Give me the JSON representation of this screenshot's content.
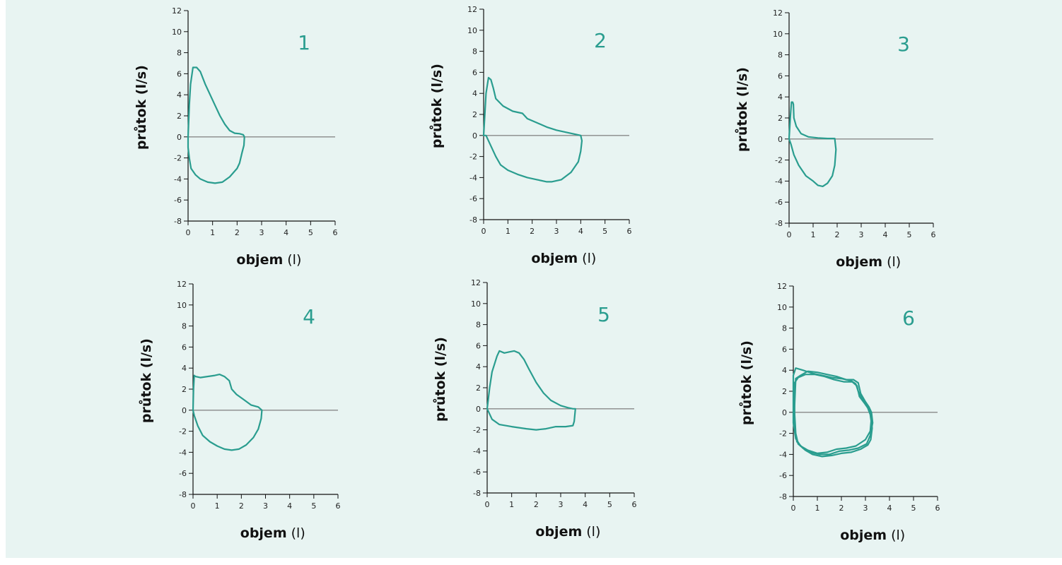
{
  "colors": {
    "curve": "#2a9d8f",
    "number": "#2a9d8f",
    "axis": "#111111",
    "zero_line": "#888888",
    "background": "#e8f4f2"
  },
  "chart_data": [
    {
      "type": "line",
      "panel_label": "1",
      "xlabel": "objem",
      "xunit": "(l)",
      "ylabel": "průtok (l/s)",
      "xlim": [
        0,
        6
      ],
      "ylim": [
        -8,
        12
      ],
      "x_ticks": [
        "0",
        "1",
        "2",
        "3",
        "4",
        "5",
        "6"
      ],
      "y_ticks": [
        "12",
        "10",
        "8",
        "6",
        "4",
        "2",
        "0",
        "-2",
        "-4",
        "-6",
        "-8"
      ],
      "series": [
        {
          "x": [
            0,
            0.05,
            0.1,
            0.2,
            0.35,
            0.5,
            0.7,
            0.9,
            1.1,
            1.3,
            1.5,
            1.7,
            1.9,
            2.1,
            2.25,
            2.3,
            2.28,
            2.2,
            2.1,
            2.0,
            1.7,
            1.4,
            1.1,
            0.8,
            0.5,
            0.3,
            0.12,
            0.05,
            0,
            0
          ],
          "y": [
            0,
            3,
            5,
            6.6,
            6.6,
            6.2,
            5,
            4,
            3,
            2,
            1.2,
            0.6,
            0.35,
            0.3,
            0.2,
            0,
            -0.8,
            -1.5,
            -2.5,
            -3.0,
            -3.8,
            -4.3,
            -4.4,
            -4.3,
            -4.0,
            -3.6,
            -3.0,
            -2,
            -1,
            0
          ]
        }
      ]
    },
    {
      "type": "line",
      "panel_label": "2",
      "xlabel": "objem",
      "xunit": "(l)",
      "ylabel": "průtok (l/s)",
      "xlim": [
        0,
        6
      ],
      "ylim": [
        -8,
        12
      ],
      "x_ticks": [
        "0",
        "1",
        "2",
        "3",
        "4",
        "5",
        "6"
      ],
      "y_ticks": [
        "12",
        "10",
        "8",
        "6",
        "4",
        "2",
        "0",
        "-2",
        "-4",
        "-6",
        "-8"
      ],
      "series": [
        {
          "x": [
            0,
            0.05,
            0.1,
            0.2,
            0.3,
            0.4,
            0.5,
            0.8,
            1.2,
            1.6,
            1.8,
            2.2,
            2.6,
            3.0,
            3.4,
            3.8,
            4.0,
            4.05,
            4.0,
            3.9,
            3.6,
            3.2,
            2.8,
            2.6,
            2.2,
            1.8,
            1.4,
            1.0,
            0.7,
            0.5,
            0.3,
            0.1,
            0
          ],
          "y": [
            0,
            2,
            4,
            5.5,
            5.3,
            4.5,
            3.5,
            2.8,
            2.3,
            2.1,
            1.6,
            1.2,
            0.8,
            0.5,
            0.3,
            0.1,
            0,
            -0.5,
            -1.5,
            -2.5,
            -3.5,
            -4.2,
            -4.4,
            -4.4,
            -4.2,
            -4.0,
            -3.7,
            -3.3,
            -2.8,
            -2.0,
            -1.0,
            0,
            0
          ]
        }
      ]
    },
    {
      "type": "line",
      "panel_label": "3",
      "xlabel": "objem",
      "xunit": "(l)",
      "ylabel": "průtok (l/s)",
      "xlim": [
        0,
        6
      ],
      "ylim": [
        -8,
        12
      ],
      "x_ticks": [
        "0",
        "1",
        "2",
        "3",
        "4",
        "5",
        "6"
      ],
      "y_ticks": [
        "12",
        "10",
        "8",
        "6",
        "4",
        "2",
        "0",
        "-2",
        "-4",
        "-6",
        "-8"
      ],
      "series": [
        {
          "x": [
            0,
            0.05,
            0.1,
            0.15,
            0.18,
            0.2,
            0.3,
            0.5,
            0.8,
            1.2,
            1.6,
            1.9,
            1.95,
            1.9,
            1.8,
            1.6,
            1.4,
            1.2,
            1.0,
            0.7,
            0.4,
            0.2,
            0.08,
            0
          ],
          "y": [
            0,
            2,
            3.5,
            3.5,
            3.3,
            2,
            1.2,
            0.5,
            0.2,
            0.1,
            0.05,
            0.05,
            -1,
            -2.5,
            -3.5,
            -4.2,
            -4.5,
            -4.4,
            -4.0,
            -3.5,
            -2.5,
            -1.5,
            -0.5,
            0
          ]
        }
      ]
    },
    {
      "type": "line",
      "panel_label": "4",
      "xlabel": "objem",
      "xunit": "(l)",
      "ylabel": "průtok (l/s)",
      "xlim": [
        0,
        6
      ],
      "ylim": [
        -8,
        12
      ],
      "x_ticks": [
        "0",
        "1",
        "2",
        "3",
        "4",
        "5",
        "6"
      ],
      "y_ticks": [
        "12",
        "10",
        "8",
        "6",
        "4",
        "2",
        "0",
        "-2",
        "-4",
        "-6",
        "-8"
      ],
      "series": [
        {
          "x": [
            0,
            0.02,
            0.05,
            0.1,
            0.3,
            0.6,
            0.9,
            1.1,
            1.3,
            1.5,
            1.6,
            1.8,
            2.1,
            2.4,
            2.7,
            2.85,
            2.82,
            2.7,
            2.5,
            2.2,
            1.9,
            1.6,
            1.3,
            1.0,
            0.7,
            0.4,
            0.2,
            0.05,
            0
          ],
          "y": [
            0,
            2,
            3.3,
            3.2,
            3.1,
            3.2,
            3.3,
            3.4,
            3.2,
            2.8,
            2.0,
            1.5,
            1.0,
            0.5,
            0.3,
            0,
            -0.8,
            -1.8,
            -2.6,
            -3.3,
            -3.7,
            -3.8,
            -3.7,
            -3.4,
            -3.0,
            -2.4,
            -1.5,
            -0.5,
            0
          ]
        }
      ]
    },
    {
      "type": "line",
      "panel_label": "5",
      "xlabel": "objem",
      "xunit": "(l)",
      "ylabel": "průtok (l/s)",
      "xlim": [
        0,
        6
      ],
      "ylim": [
        -8,
        12
      ],
      "x_ticks": [
        "0",
        "1",
        "2",
        "3",
        "4",
        "5",
        "6"
      ],
      "y_ticks": [
        "12",
        "10",
        "8",
        "6",
        "4",
        "2",
        "0",
        "-2",
        "-4",
        "-6",
        "-8"
      ],
      "series": [
        {
          "x": [
            0,
            0.1,
            0.2,
            0.4,
            0.5,
            0.7,
            0.9,
            1.1,
            1.3,
            1.5,
            1.7,
            2.0,
            2.3,
            2.6,
            3.0,
            3.3,
            3.5,
            3.6,
            3.55,
            3.5,
            3.2,
            2.8,
            2.4,
            2.0,
            1.6,
            1.0,
            0.5,
            0.2,
            0
          ],
          "y": [
            0,
            2,
            3.5,
            5.0,
            5.5,
            5.3,
            5.4,
            5.5,
            5.3,
            4.7,
            3.8,
            2.5,
            1.5,
            0.8,
            0.3,
            0.1,
            0,
            0,
            -1.2,
            -1.6,
            -1.7,
            -1.7,
            -1.9,
            -2.0,
            -1.9,
            -1.7,
            -1.5,
            -1.0,
            0
          ]
        }
      ]
    },
    {
      "type": "line",
      "panel_label": "6",
      "xlabel": "objem",
      "xunit": "(l)",
      "ylabel": "průtok (l/s)",
      "xlim": [
        0,
        6
      ],
      "ylim": [
        -8,
        12
      ],
      "x_ticks": [
        "0",
        "1",
        "2",
        "3",
        "4",
        "5",
        "6"
      ],
      "y_ticks": [
        "12",
        "10",
        "8",
        "6",
        "4",
        "2",
        "0",
        "-2",
        "-4",
        "-6",
        "-8"
      ],
      "series": [
        {
          "x": [
            0,
            0.1,
            0.4,
            0.8,
            1.2,
            1.6,
            2.0,
            2.4,
            2.6,
            2.7,
            2.9,
            3.1,
            3.2,
            3.25,
            3.2,
            3.0,
            2.6,
            2.2,
            1.8,
            1.4,
            1.0,
            0.6,
            0.3,
            0.1,
            0,
            0,
            0
          ],
          "y": [
            3.5,
            4.2,
            4.0,
            3.7,
            3.5,
            3.3,
            3.2,
            3.0,
            2.7,
            2.0,
            1.2,
            0.6,
            0.2,
            -0.5,
            -1.8,
            -2.6,
            -3.2,
            -3.4,
            -3.5,
            -3.8,
            -3.9,
            -3.6,
            -3.2,
            -2.5,
            -1.0,
            1.0,
            3.5
          ]
        },
        {
          "x": [
            0.1,
            0.3,
            0.6,
            1.0,
            1.4,
            1.8,
            2.2,
            2.5,
            2.7,
            2.8,
            3.0,
            3.15,
            3.25,
            3.3,
            3.2,
            3.05,
            2.7,
            2.3,
            1.9,
            1.5,
            1.1,
            0.7,
            0.4,
            0.15,
            0.05,
            0.05,
            0.1
          ],
          "y": [
            3.2,
            3.5,
            3.9,
            3.8,
            3.6,
            3.4,
            3.1,
            3.1,
            2.8,
            1.8,
            1.0,
            0.5,
            0,
            -1.0,
            -2.2,
            -3.0,
            -3.4,
            -3.6,
            -3.7,
            -4.0,
            -4.0,
            -3.8,
            -3.4,
            -2.8,
            -1.5,
            0.5,
            3.2
          ]
        },
        {
          "x": [
            0.05,
            0.2,
            0.5,
            0.9,
            1.3,
            1.7,
            2.1,
            2.45,
            2.65,
            2.75,
            2.95,
            3.1,
            3.2,
            3.28,
            3.22,
            3.1,
            2.8,
            2.4,
            2.0,
            1.6,
            1.2,
            0.8,
            0.5,
            0.2,
            0.1,
            0.05,
            0.05
          ],
          "y": [
            2.8,
            3.3,
            3.6,
            3.6,
            3.4,
            3.1,
            2.9,
            2.9,
            2.5,
            1.5,
            0.9,
            0.4,
            -0.2,
            -1.5,
            -2.6,
            -3.1,
            -3.5,
            -3.8,
            -3.9,
            -4.1,
            -4.2,
            -4.0,
            -3.6,
            -3.0,
            -2.0,
            0,
            2.8
          ]
        }
      ]
    }
  ]
}
